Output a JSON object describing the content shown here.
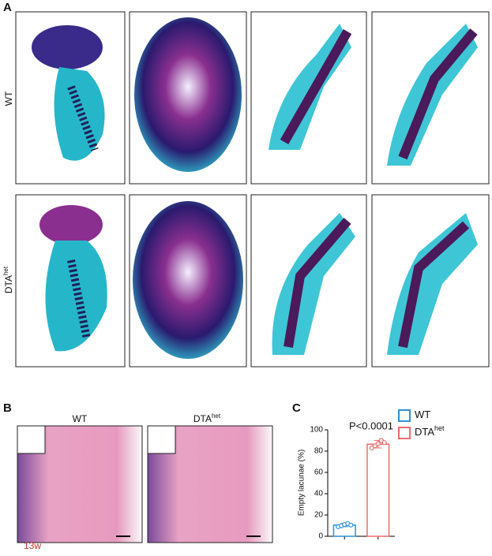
{
  "panels": {
    "a": {
      "label": "A",
      "rows": [
        {
          "label": "WT"
        },
        {
          "label": "DTA",
          "superscript": "het"
        }
      ]
    },
    "b": {
      "label": "B",
      "columns": [
        {
          "label": "WT"
        },
        {
          "label": "DTA",
          "superscript": "het"
        }
      ],
      "age": "13w"
    },
    "c": {
      "label": "C"
    }
  },
  "chart_data": {
    "type": "bar",
    "ylabel": "Empty lacunae (%)",
    "annotation": "P<0.0001",
    "categories": [
      null,
      null
    ],
    "ylim": [
      0,
      100
    ],
    "yticks": [
      0,
      20,
      40,
      60,
      80,
      100
    ],
    "series": [
      {
        "name": "WT",
        "color": "#2e8fd8",
        "values": [
          10.5,
          null
        ],
        "errors": [
          1.5,
          null
        ],
        "points": [
          [
            9,
            10,
            11,
            12,
            10.5
          ],
          null
        ]
      },
      {
        "name": "DTA",
        "name_superscript": "het",
        "color": "#ef6b6b",
        "values": [
          null,
          86.5
        ],
        "errors": [
          null,
          3.5
        ],
        "points": [
          null,
          [
            83,
            85,
            87,
            90,
            88
          ]
        ]
      }
    ]
  }
}
